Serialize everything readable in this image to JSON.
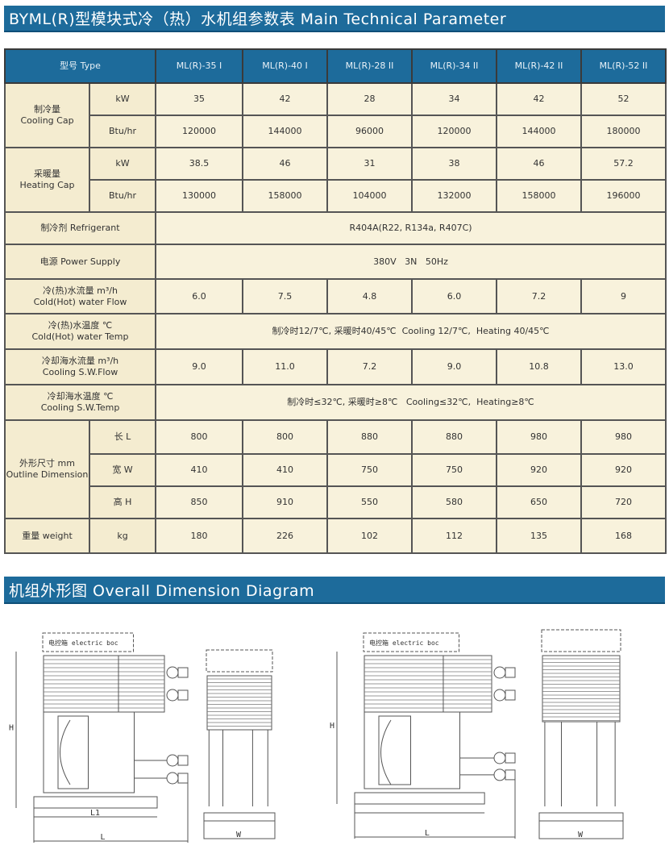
{
  "title": "BYML(R)型模块式冷（热）水机组参数表 Main Technical Parameter",
  "table": {
    "type_label": "型号 Type",
    "models": [
      "ML(R)-35 I",
      "ML(R)-40 I",
      "ML(R)-28 II",
      "ML(R)-34 II",
      "ML(R)-42 II",
      "ML(R)-52 II"
    ],
    "cooling_cap": {
      "label_cn": "制冷量",
      "label_en": "Cooling Cap",
      "kw_unit": "kW",
      "kw": [
        "35",
        "42",
        "28",
        "34",
        "42",
        "52"
      ],
      "btu_unit": "Btu/hr",
      "btu": [
        "120000",
        "144000",
        "96000",
        "120000",
        "144000",
        "180000"
      ]
    },
    "heating_cap": {
      "label_cn": "采暖量",
      "label_en": "Heating Cap",
      "kw_unit": "kW",
      "kw": [
        "38.5",
        "46",
        "31",
        "38",
        "46",
        "57.2"
      ],
      "btu_unit": "Btu/hr",
      "btu": [
        "130000",
        "158000",
        "104000",
        "132000",
        "158000",
        "196000"
      ]
    },
    "refrigerant": {
      "label": "制冷剂 Refrigerant",
      "value": "R404A(R22, R134a, R407C)"
    },
    "power_supply": {
      "label": "电源 Power Supply",
      "value": "380V   3N   50Hz"
    },
    "water_flow": {
      "label_cn": "冷(热)水流量 m³/h",
      "label_en": "Cold(Hot) water Flow",
      "values": [
        "6.0",
        "7.5",
        "4.8",
        "6.0",
        "7.2",
        "9"
      ]
    },
    "water_temp": {
      "label_cn": "冷(热)水温度 ℃",
      "label_en": "Cold(Hot) water Temp",
      "value": "制冷时12/7℃, 采暖时40/45℃  Cooling 12/7℃,  Heating 40/45℃"
    },
    "sw_flow": {
      "label_cn": "冷却海水流量 m³/h",
      "label_en": "Cooling S.W.Flow",
      "values": [
        "9.0",
        "11.0",
        "7.2",
        "9.0",
        "10.8",
        "13.0"
      ]
    },
    "sw_temp": {
      "label_cn": "冷却海水温度 ℃",
      "label_en": "Cooling S.W.Temp",
      "value": "制冷时≤32℃, 采暖时≥8℃   Cooling≤32℃,  Heating≥8℃"
    },
    "dimension": {
      "label_cn": "外形尺寸 mm",
      "label_en": "Outline Dimension",
      "length_label": "长 L",
      "length": [
        "800",
        "800",
        "880",
        "880",
        "980",
        "980"
      ],
      "width_label": "宽 W",
      "width": [
        "410",
        "410",
        "750",
        "750",
        "920",
        "920"
      ],
      "height_label": "高 H",
      "height": [
        "850",
        "910",
        "550",
        "580",
        "650",
        "720"
      ]
    },
    "weight": {
      "label": "重量 weight",
      "unit": "kg",
      "values": [
        "180",
        "226",
        "102",
        "112",
        "135",
        "168"
      ]
    }
  },
  "diagram": {
    "title": "机组外形图 Overall Dimension Diagram",
    "electric_box_label": "电控箱 electric boc",
    "dim_h": "H",
    "dim_l1": "L1",
    "dim_l": "L",
    "dim_w": "W"
  }
}
